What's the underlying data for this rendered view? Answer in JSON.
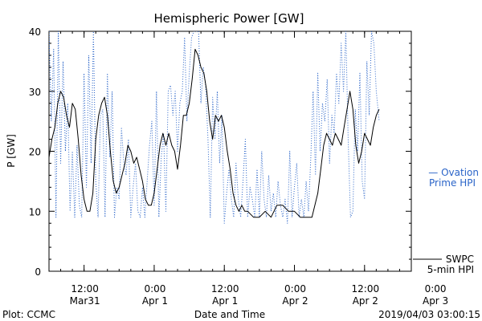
{
  "chart_data": {
    "type": "line",
    "title": "Hemispheric Power [GW]",
    "xlabel": "Date and Time",
    "ylabel": "P [GW]",
    "ylim": [
      0,
      40
    ],
    "yticks": [
      0,
      10,
      20,
      30,
      40
    ],
    "xlim_hours": [
      0,
      62
    ],
    "x_ticks": [
      {
        "hour": 6,
        "top": "12:00",
        "bottom": "Mar31"
      },
      {
        "hour": 18,
        "top": "0:00",
        "bottom": "Apr 1"
      },
      {
        "hour": 30,
        "top": "12:00",
        "bottom": "Apr 1"
      },
      {
        "hour": 42,
        "top": "0:00",
        "bottom": "Apr 2"
      },
      {
        "hour": 54,
        "top": "12:00",
        "bottom": "Apr 2"
      },
      {
        "hour": 66,
        "top": "0:00",
        "bottom": "Apr 3"
      }
    ],
    "series": [
      {
        "name": "SWPC 5-min HPI",
        "color": "#000000",
        "style": "solid",
        "points": [
          [
            0,
            19
          ],
          [
            0.5,
            22
          ],
          [
            1.0,
            24
          ],
          [
            1.5,
            28
          ],
          [
            2.0,
            30
          ],
          [
            2.5,
            29
          ],
          [
            3.0,
            26
          ],
          [
            3.5,
            24
          ],
          [
            4.0,
            28
          ],
          [
            4.5,
            27
          ],
          [
            5.0,
            22
          ],
          [
            5.5,
            16
          ],
          [
            6.0,
            12
          ],
          [
            6.5,
            10
          ],
          [
            7.0,
            10
          ],
          [
            7.5,
            13
          ],
          [
            8.0,
            22
          ],
          [
            8.5,
            26
          ],
          [
            9.0,
            28
          ],
          [
            9.5,
            29
          ],
          [
            10.0,
            26
          ],
          [
            10.5,
            20
          ],
          [
            11.0,
            15
          ],
          [
            11.5,
            13
          ],
          [
            12.0,
            14
          ],
          [
            12.5,
            16
          ],
          [
            13.0,
            18
          ],
          [
            13.5,
            21
          ],
          [
            14.0,
            20
          ],
          [
            14.5,
            18
          ],
          [
            15.0,
            19
          ],
          [
            15.5,
            17
          ],
          [
            16.0,
            15
          ],
          [
            16.5,
            12
          ],
          [
            17.0,
            11
          ],
          [
            17.5,
            11
          ],
          [
            18.0,
            13
          ],
          [
            18.5,
            17
          ],
          [
            19.0,
            21
          ],
          [
            19.5,
            23
          ],
          [
            20.0,
            21
          ],
          [
            20.5,
            23
          ],
          [
            21.0,
            21
          ],
          [
            21.5,
            20
          ],
          [
            22.0,
            17
          ],
          [
            22.5,
            21
          ],
          [
            23.0,
            26
          ],
          [
            23.5,
            26
          ],
          [
            24.0,
            28
          ],
          [
            24.5,
            32
          ],
          [
            25.0,
            37
          ],
          [
            25.5,
            36
          ],
          [
            26.0,
            34
          ],
          [
            26.5,
            33
          ],
          [
            27.0,
            30
          ],
          [
            27.5,
            25
          ],
          [
            28.0,
            22
          ],
          [
            28.5,
            26
          ],
          [
            29.0,
            25
          ],
          [
            29.5,
            26
          ],
          [
            30.0,
            24
          ],
          [
            30.5,
            20
          ],
          [
            31.0,
            17
          ],
          [
            31.5,
            13
          ],
          [
            32.0,
            11
          ],
          [
            32.5,
            10
          ],
          [
            33.0,
            11
          ],
          [
            33.5,
            10
          ],
          [
            34.0,
            10
          ],
          [
            35.0,
            9
          ],
          [
            36.0,
            9
          ],
          [
            37.0,
            10
          ],
          [
            38.0,
            9
          ],
          [
            39.0,
            11
          ],
          [
            40.0,
            11
          ],
          [
            41.0,
            10
          ],
          [
            42.0,
            10
          ],
          [
            43.0,
            9
          ],
          [
            44.0,
            9
          ],
          [
            45.0,
            9
          ],
          [
            46.0,
            13
          ],
          [
            46.5,
            17
          ],
          [
            47.0,
            21
          ],
          [
            47.5,
            23
          ],
          [
            48.0,
            22
          ],
          [
            48.5,
            21
          ],
          [
            49.0,
            23
          ],
          [
            49.5,
            22
          ],
          [
            50.0,
            21
          ],
          [
            50.5,
            24
          ],
          [
            51.0,
            27
          ],
          [
            51.5,
            30
          ],
          [
            52.0,
            27
          ],
          [
            52.5,
            21
          ],
          [
            53.0,
            18
          ],
          [
            53.5,
            20
          ],
          [
            54.0,
            23
          ],
          [
            54.5,
            22
          ],
          [
            55.0,
            21
          ],
          [
            55.5,
            24
          ],
          [
            56.0,
            26
          ],
          [
            56.5,
            27
          ]
        ]
      },
      {
        "name": "Ovation Prime HPI",
        "color": "#2a64c8",
        "style": "dotted",
        "points": [
          [
            0,
            40
          ],
          [
            0.4,
            25
          ],
          [
            0.8,
            37
          ],
          [
            1.2,
            9
          ],
          [
            1.6,
            40
          ],
          [
            2.0,
            18
          ],
          [
            2.4,
            35
          ],
          [
            2.8,
            20
          ],
          [
            3.2,
            28
          ],
          [
            3.6,
            10
          ],
          [
            4.0,
            20
          ],
          [
            4.4,
            9
          ],
          [
            4.8,
            21
          ],
          [
            5.2,
            11
          ],
          [
            5.6,
            9
          ],
          [
            6.0,
            33
          ],
          [
            6.4,
            14
          ],
          [
            6.8,
            36
          ],
          [
            7.2,
            18
          ],
          [
            7.6,
            40
          ],
          [
            8.0,
            15
          ],
          [
            8.4,
            9
          ],
          [
            8.8,
            26
          ],
          [
            9.2,
            27
          ],
          [
            9.6,
            9
          ],
          [
            10.0,
            33
          ],
          [
            10.4,
            19
          ],
          [
            10.8,
            30
          ],
          [
            11.2,
            9
          ],
          [
            11.6,
            14
          ],
          [
            12.0,
            12
          ],
          [
            12.4,
            24
          ],
          [
            12.8,
            18
          ],
          [
            13.2,
            16
          ],
          [
            13.6,
            22
          ],
          [
            14.0,
            9
          ],
          [
            14.4,
            14
          ],
          [
            14.8,
            18
          ],
          [
            15.2,
            10
          ],
          [
            15.6,
            9
          ],
          [
            16.0,
            14
          ],
          [
            16.4,
            9
          ],
          [
            16.8,
            15
          ],
          [
            17.2,
            21
          ],
          [
            17.6,
            25
          ],
          [
            18.0,
            11
          ],
          [
            18.4,
            30
          ],
          [
            18.8,
            9
          ],
          [
            19.2,
            19
          ],
          [
            19.6,
            23
          ],
          [
            20.0,
            10
          ],
          [
            20.4,
            30
          ],
          [
            20.8,
            31
          ],
          [
            21.2,
            26
          ],
          [
            21.6,
            30
          ],
          [
            22.0,
            20
          ],
          [
            22.4,
            28
          ],
          [
            22.8,
            30
          ],
          [
            23.2,
            39
          ],
          [
            23.6,
            25
          ],
          [
            24.0,
            33
          ],
          [
            24.4,
            39
          ],
          [
            24.8,
            40
          ],
          [
            25.2,
            40
          ],
          [
            25.6,
            40
          ],
          [
            26.0,
            28
          ],
          [
            26.4,
            34
          ],
          [
            26.8,
            31
          ],
          [
            27.2,
            22
          ],
          [
            27.6,
            9
          ],
          [
            28.0,
            29
          ],
          [
            28.4,
            22
          ],
          [
            28.8,
            30
          ],
          [
            29.2,
            18
          ],
          [
            29.6,
            26
          ],
          [
            30.0,
            8
          ],
          [
            30.4,
            13
          ],
          [
            30.8,
            17
          ],
          [
            31.2,
            12
          ],
          [
            31.6,
            9
          ],
          [
            32.0,
            18
          ],
          [
            32.4,
            12
          ],
          [
            32.8,
            9
          ],
          [
            33.2,
            15
          ],
          [
            33.6,
            22
          ],
          [
            34.0,
            9
          ],
          [
            34.4,
            14
          ],
          [
            34.8,
            12
          ],
          [
            35.2,
            9
          ],
          [
            35.6,
            17
          ],
          [
            36.0,
            9
          ],
          [
            36.4,
            20
          ],
          [
            36.8,
            12
          ],
          [
            37.2,
            9
          ],
          [
            37.6,
            16
          ],
          [
            38.0,
            10
          ],
          [
            38.4,
            13
          ],
          [
            38.8,
            9
          ],
          [
            39.2,
            15
          ],
          [
            39.6,
            11
          ],
          [
            40.0,
            9
          ],
          [
            40.4,
            12
          ],
          [
            40.8,
            8
          ],
          [
            41.2,
            20
          ],
          [
            41.6,
            9
          ],
          [
            42.0,
            14
          ],
          [
            42.4,
            18
          ],
          [
            42.8,
            9
          ],
          [
            43.2,
            12
          ],
          [
            43.6,
            9
          ],
          [
            44.0,
            15
          ],
          [
            44.4,
            10
          ],
          [
            44.8,
            19
          ],
          [
            45.2,
            30
          ],
          [
            45.6,
            16
          ],
          [
            46.0,
            33
          ],
          [
            46.4,
            20
          ],
          [
            46.8,
            28
          ],
          [
            47.2,
            25
          ],
          [
            47.6,
            32
          ],
          [
            48.0,
            18
          ],
          [
            48.4,
            26
          ],
          [
            48.8,
            23
          ],
          [
            49.2,
            33
          ],
          [
            49.6,
            28
          ],
          [
            50.0,
            38
          ],
          [
            50.4,
            30
          ],
          [
            50.8,
            40
          ],
          [
            51.2,
            22
          ],
          [
            51.6,
            9
          ],
          [
            52.0,
            10
          ],
          [
            52.4,
            27
          ],
          [
            52.8,
            20
          ],
          [
            53.2,
            33
          ],
          [
            53.6,
            15
          ],
          [
            54.0,
            12
          ],
          [
            54.4,
            35
          ],
          [
            54.8,
            26
          ],
          [
            55.2,
            40
          ],
          [
            55.6,
            38
          ],
          [
            56.0,
            30
          ],
          [
            56.5,
            25
          ]
        ]
      }
    ],
    "legend": [
      {
        "lines": [
          "— Ovation",
          "Prime HPI"
        ],
        "color": "#2a64c8"
      },
      {
        "lines": [
          "SWPC",
          "5-min HPI"
        ],
        "color": "#000000"
      }
    ],
    "grid": false
  },
  "footer": {
    "left": "Plot: CCMC",
    "right": "2019/04/03 03:00:15"
  }
}
